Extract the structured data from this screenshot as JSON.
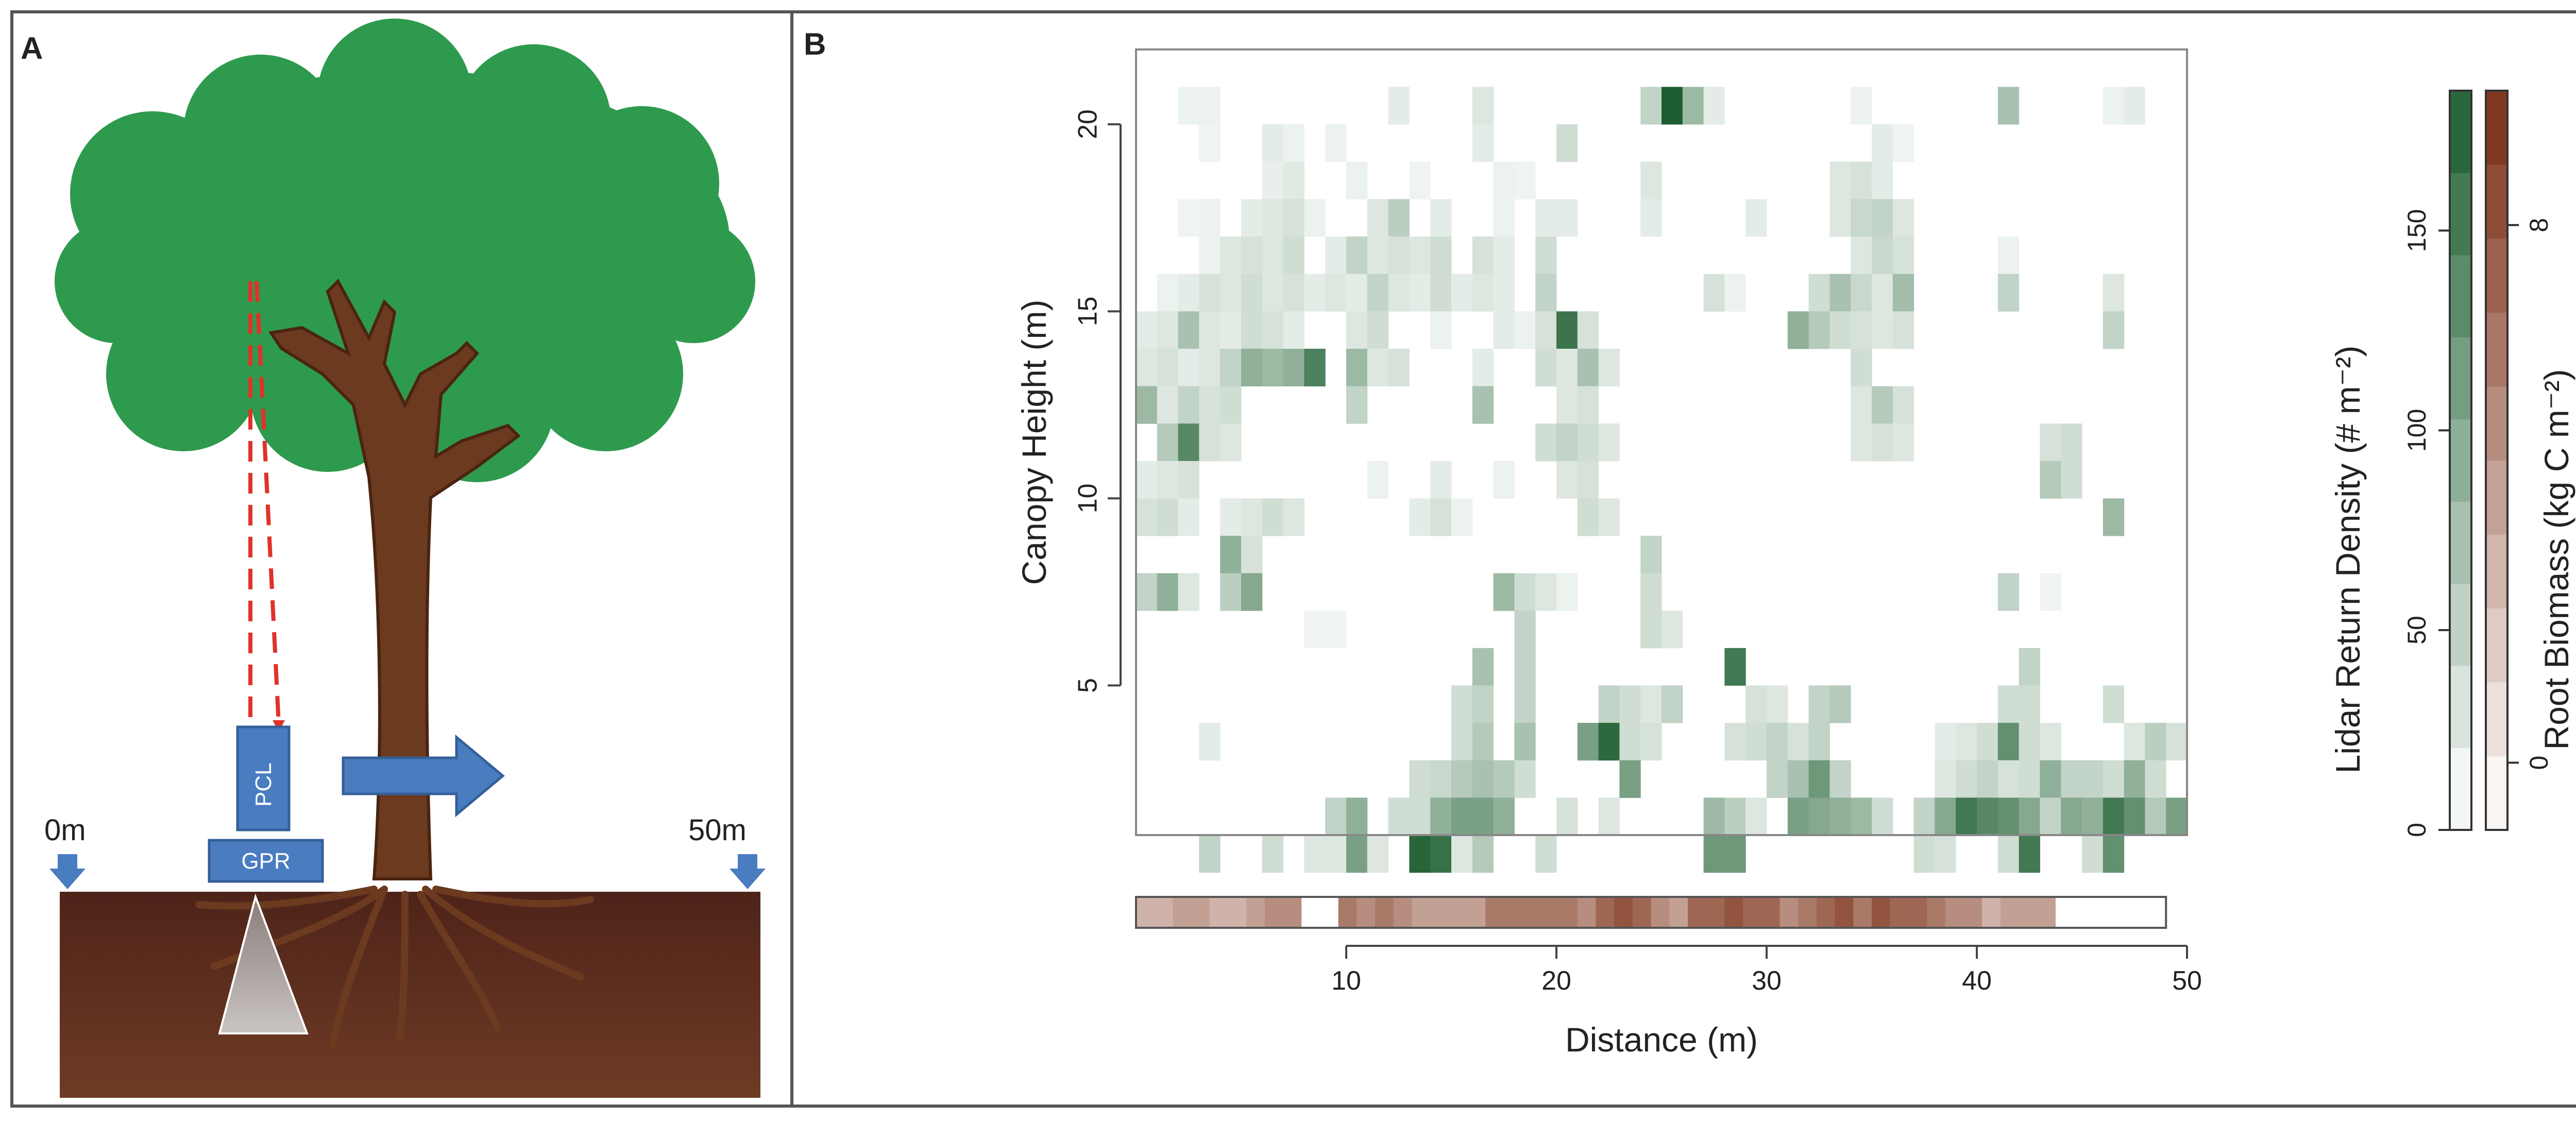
{
  "panel_a": {
    "label": "A",
    "pcl_label": "PCL",
    "gpr_label": "GPR",
    "start_label": "0m",
    "end_label": "50m",
    "colors": {
      "canopy": "#2e9a4e",
      "trunk": "#6b3a1f",
      "soil_top": "#5a2a1c",
      "soil_bottom": "#6d3a24",
      "instrument": "#4a7cc0",
      "laser": "#e0322a"
    }
  },
  "chart_data": {
    "type": "heatmap",
    "panel_label": "B",
    "xlabel": "Distance (m)",
    "ylabel": "Canopy Height (m)",
    "xlim": [
      0,
      50
    ],
    "ylim": [
      1,
      22
    ],
    "x_ticks": [
      "10",
      "20",
      "30",
      "40",
      "50"
    ],
    "x_tick_values": [
      10,
      20,
      30,
      40,
      50
    ],
    "y_ticks": [
      "5",
      "10",
      "15",
      "20"
    ],
    "y_tick_values": [
      5,
      10,
      15,
      20
    ],
    "cell_width_m": 1,
    "cell_height_m": 1,
    "lidar_scale_max": 185,
    "lidar_cells": [
      [
        3,
        21,
        10
      ],
      [
        4,
        21,
        10
      ],
      [
        13,
        21,
        15
      ],
      [
        17,
        21,
        20
      ],
      [
        25,
        21,
        40
      ],
      [
        26,
        21,
        185
      ],
      [
        27,
        21,
        70
      ],
      [
        28,
        21,
        15
      ],
      [
        35,
        21,
        10
      ],
      [
        42,
        21,
        60
      ],
      [
        47,
        21,
        10
      ],
      [
        48,
        21,
        15
      ],
      [
        4,
        20,
        8
      ],
      [
        7,
        20,
        15
      ],
      [
        8,
        20,
        10
      ],
      [
        10,
        20,
        10
      ],
      [
        17,
        20,
        15
      ],
      [
        21,
        20,
        30
      ],
      [
        36,
        20,
        15
      ],
      [
        37,
        20,
        8
      ],
      [
        7,
        19,
        12
      ],
      [
        8,
        19,
        18
      ],
      [
        11,
        19,
        10
      ],
      [
        14,
        19,
        8
      ],
      [
        18,
        19,
        10
      ],
      [
        19,
        19,
        8
      ],
      [
        25,
        19,
        20
      ],
      [
        34,
        19,
        20
      ],
      [
        35,
        19,
        25
      ],
      [
        36,
        19,
        15
      ],
      [
        3,
        18,
        8
      ],
      [
        4,
        18,
        10
      ],
      [
        6,
        18,
        15
      ],
      [
        7,
        18,
        20
      ],
      [
        8,
        18,
        25
      ],
      [
        9,
        18,
        10
      ],
      [
        12,
        18,
        20
      ],
      [
        13,
        18,
        45
      ],
      [
        15,
        18,
        15
      ],
      [
        18,
        18,
        10
      ],
      [
        20,
        18,
        15
      ],
      [
        21,
        18,
        15
      ],
      [
        25,
        18,
        15
      ],
      [
        30,
        18,
        15
      ],
      [
        34,
        18,
        20
      ],
      [
        35,
        18,
        35
      ],
      [
        36,
        18,
        40
      ],
      [
        37,
        18,
        20
      ],
      [
        4,
        17,
        10
      ],
      [
        5,
        17,
        20
      ],
      [
        6,
        17,
        25
      ],
      [
        7,
        17,
        20
      ],
      [
        8,
        17,
        30
      ],
      [
        10,
        17,
        15
      ],
      [
        11,
        17,
        40
      ],
      [
        12,
        17,
        20
      ],
      [
        13,
        17,
        25
      ],
      [
        14,
        17,
        20
      ],
      [
        15,
        17,
        30
      ],
      [
        17,
        17,
        25
      ],
      [
        18,
        17,
        15
      ],
      [
        20,
        17,
        30
      ],
      [
        35,
        17,
        20
      ],
      [
        36,
        17,
        35
      ],
      [
        37,
        17,
        25
      ],
      [
        42,
        17,
        10
      ],
      [
        2,
        16,
        10
      ],
      [
        3,
        16,
        15
      ],
      [
        4,
        16,
        25
      ],
      [
        5,
        16,
        20
      ],
      [
        6,
        16,
        30
      ],
      [
        7,
        16,
        20
      ],
      [
        8,
        16,
        25
      ],
      [
        9,
        16,
        15
      ],
      [
        10,
        16,
        20
      ],
      [
        11,
        16,
        15
      ],
      [
        12,
        16,
        40
      ],
      [
        13,
        16,
        20
      ],
      [
        14,
        16,
        15
      ],
      [
        15,
        16,
        30
      ],
      [
        16,
        16,
        15
      ],
      [
        17,
        16,
        20
      ],
      [
        18,
        16,
        15
      ],
      [
        20,
        16,
        40
      ],
      [
        28,
        16,
        25
      ],
      [
        29,
        16,
        10
      ],
      [
        33,
        16,
        30
      ],
      [
        34,
        16,
        60
      ],
      [
        35,
        16,
        35
      ],
      [
        36,
        16,
        20
      ],
      [
        37,
        16,
        65
      ],
      [
        42,
        16,
        40
      ],
      [
        47,
        16,
        20
      ],
      [
        1,
        15,
        15
      ],
      [
        2,
        15,
        20
      ],
      [
        3,
        15,
        60
      ],
      [
        4,
        15,
        20
      ],
      [
        5,
        15,
        15
      ],
      [
        6,
        15,
        30
      ],
      [
        7,
        15,
        25
      ],
      [
        8,
        15,
        15
      ],
      [
        11,
        15,
        20
      ],
      [
        12,
        15,
        30
      ],
      [
        15,
        15,
        10
      ],
      [
        18,
        15,
        15
      ],
      [
        19,
        15,
        10
      ],
      [
        20,
        15,
        25
      ],
      [
        21,
        15,
        155
      ],
      [
        22,
        15,
        25
      ],
      [
        32,
        15,
        80
      ],
      [
        33,
        15,
        50
      ],
      [
        34,
        15,
        30
      ],
      [
        35,
        15,
        25
      ],
      [
        36,
        15,
        20
      ],
      [
        37,
        15,
        25
      ],
      [
        47,
        15,
        40
      ],
      [
        1,
        14,
        20
      ],
      [
        2,
        14,
        25
      ],
      [
        3,
        14,
        15
      ],
      [
        4,
        14,
        20
      ],
      [
        5,
        14,
        40
      ],
      [
        6,
        14,
        80
      ],
      [
        7,
        14,
        70
      ],
      [
        8,
        14,
        80
      ],
      [
        9,
        14,
        140
      ],
      [
        11,
        14,
        70
      ],
      [
        12,
        14,
        20
      ],
      [
        13,
        14,
        25
      ],
      [
        17,
        14,
        15
      ],
      [
        20,
        14,
        30
      ],
      [
        21,
        14,
        20
      ],
      [
        22,
        14,
        60
      ],
      [
        23,
        14,
        20
      ],
      [
        35,
        14,
        30
      ],
      [
        1,
        13,
        70
      ],
      [
        2,
        13,
        20
      ],
      [
        3,
        13,
        40
      ],
      [
        4,
        13,
        25
      ],
      [
        5,
        13,
        30
      ],
      [
        11,
        13,
        40
      ],
      [
        17,
        13,
        60
      ],
      [
        21,
        13,
        20
      ],
      [
        22,
        13,
        25
      ],
      [
        35,
        13,
        20
      ],
      [
        36,
        13,
        50
      ],
      [
        37,
        13,
        25
      ],
      [
        2,
        12,
        50
      ],
      [
        3,
        12,
        130
      ],
      [
        4,
        12,
        25
      ],
      [
        5,
        12,
        20
      ],
      [
        20,
        12,
        30
      ],
      [
        21,
        12,
        40
      ],
      [
        22,
        12,
        30
      ],
      [
        23,
        12,
        20
      ],
      [
        35,
        12,
        20
      ],
      [
        36,
        12,
        25
      ],
      [
        37,
        12,
        20
      ],
      [
        44,
        12,
        25
      ],
      [
        45,
        12,
        30
      ],
      [
        1,
        11,
        15
      ],
      [
        2,
        11,
        20
      ],
      [
        3,
        11,
        25
      ],
      [
        12,
        11,
        10
      ],
      [
        15,
        11,
        15
      ],
      [
        18,
        11,
        10
      ],
      [
        21,
        11,
        20
      ],
      [
        22,
        11,
        25
      ],
      [
        44,
        11,
        50
      ],
      [
        45,
        11,
        30
      ],
      [
        1,
        10,
        25
      ],
      [
        2,
        10,
        30
      ],
      [
        3,
        10,
        15
      ],
      [
        5,
        10,
        15
      ],
      [
        6,
        10,
        20
      ],
      [
        7,
        10,
        30
      ],
      [
        8,
        10,
        20
      ],
      [
        14,
        10,
        15
      ],
      [
        15,
        10,
        25
      ],
      [
        16,
        10,
        10
      ],
      [
        22,
        10,
        30
      ],
      [
        23,
        10,
        20
      ],
      [
        47,
        10,
        70
      ],
      [
        5,
        9,
        80
      ],
      [
        6,
        9,
        25
      ],
      [
        25,
        9,
        40
      ],
      [
        1,
        8,
        40
      ],
      [
        2,
        8,
        80
      ],
      [
        3,
        8,
        20
      ],
      [
        5,
        8,
        45
      ],
      [
        6,
        8,
        90
      ],
      [
        18,
        8,
        70
      ],
      [
        19,
        8,
        30
      ],
      [
        20,
        8,
        20
      ],
      [
        21,
        8,
        10
      ],
      [
        25,
        8,
        30
      ],
      [
        42,
        8,
        40
      ],
      [
        44,
        8,
        8
      ],
      [
        9,
        7,
        8
      ],
      [
        10,
        7,
        8
      ],
      [
        19,
        7,
        40
      ],
      [
        25,
        7,
        30
      ],
      [
        26,
        7,
        20
      ],
      [
        17,
        6,
        60
      ],
      [
        19,
        6,
        40
      ],
      [
        29,
        6,
        150
      ],
      [
        43,
        6,
        40
      ],
      [
        16,
        5,
        30
      ],
      [
        17,
        5,
        40
      ],
      [
        19,
        5,
        40
      ],
      [
        23,
        5,
        40
      ],
      [
        24,
        5,
        30
      ],
      [
        25,
        5,
        20
      ],
      [
        26,
        5,
        40
      ],
      [
        30,
        5,
        25
      ],
      [
        31,
        5,
        20
      ],
      [
        33,
        5,
        40
      ],
      [
        34,
        5,
        50
      ],
      [
        42,
        5,
        30
      ],
      [
        43,
        5,
        30
      ],
      [
        47,
        5,
        30
      ],
      [
        4,
        4,
        15
      ],
      [
        16,
        4,
        30
      ],
      [
        17,
        4,
        50
      ],
      [
        19,
        4,
        60
      ],
      [
        22,
        4,
        100
      ],
      [
        23,
        4,
        170
      ],
      [
        24,
        4,
        30
      ],
      [
        25,
        4,
        25
      ],
      [
        29,
        4,
        25
      ],
      [
        30,
        4,
        30
      ],
      [
        31,
        4,
        40
      ],
      [
        32,
        4,
        25
      ],
      [
        33,
        4,
        40
      ],
      [
        39,
        4,
        15
      ],
      [
        40,
        4,
        20
      ],
      [
        41,
        4,
        30
      ],
      [
        42,
        4,
        120
      ],
      [
        43,
        4,
        30
      ],
      [
        44,
        4,
        20
      ],
      [
        48,
        4,
        20
      ],
      [
        49,
        4,
        45
      ],
      [
        50,
        4,
        25
      ],
      [
        14,
        3,
        30
      ],
      [
        15,
        3,
        35
      ],
      [
        16,
        3,
        50
      ],
      [
        17,
        3,
        60
      ],
      [
        18,
        3,
        50
      ],
      [
        19,
        3,
        30
      ],
      [
        24,
        3,
        100
      ],
      [
        31,
        3,
        40
      ],
      [
        32,
        3,
        60
      ],
      [
        33,
        3,
        110
      ],
      [
        34,
        3,
        40
      ],
      [
        39,
        3,
        20
      ],
      [
        40,
        3,
        30
      ],
      [
        41,
        3,
        40
      ],
      [
        42,
        3,
        25
      ],
      [
        43,
        3,
        30
      ],
      [
        44,
        3,
        80
      ],
      [
        45,
        3,
        40
      ],
      [
        46,
        3,
        40
      ],
      [
        47,
        3,
        30
      ],
      [
        48,
        3,
        80
      ],
      [
        49,
        3,
        30
      ],
      [
        10,
        2,
        40
      ],
      [
        11,
        2,
        80
      ],
      [
        13,
        2,
        30
      ],
      [
        14,
        2,
        30
      ],
      [
        15,
        2,
        80
      ],
      [
        16,
        2,
        100
      ],
      [
        17,
        2,
        100
      ],
      [
        18,
        2,
        80
      ],
      [
        21,
        2,
        25
      ],
      [
        23,
        2,
        20
      ],
      [
        28,
        2,
        70
      ],
      [
        29,
        2,
        45
      ],
      [
        30,
        2,
        20
      ],
      [
        32,
        2,
        100
      ],
      [
        33,
        2,
        90
      ],
      [
        34,
        2,
        80
      ],
      [
        35,
        2,
        70
      ],
      [
        36,
        2,
        30
      ],
      [
        38,
        2,
        40
      ],
      [
        39,
        2,
        90
      ],
      [
        40,
        2,
        150
      ],
      [
        41,
        2,
        130
      ],
      [
        42,
        2,
        120
      ],
      [
        43,
        2,
        90
      ],
      [
        44,
        2,
        40
      ],
      [
        45,
        2,
        90
      ],
      [
        46,
        2,
        80
      ],
      [
        47,
        2,
        150
      ],
      [
        48,
        2,
        120
      ],
      [
        49,
        2,
        50
      ],
      [
        50,
        2,
        100
      ],
      [
        4,
        1,
        40
      ],
      [
        7,
        1,
        30
      ],
      [
        9,
        1,
        20
      ],
      [
        10,
        1,
        20
      ],
      [
        11,
        1,
        100
      ],
      [
        12,
        1,
        20
      ],
      [
        14,
        1,
        175
      ],
      [
        15,
        1,
        160
      ],
      [
        16,
        1,
        20
      ],
      [
        17,
        1,
        50
      ],
      [
        20,
        1,
        30
      ],
      [
        28,
        1,
        110
      ],
      [
        29,
        1,
        110
      ],
      [
        38,
        1,
        30
      ],
      [
        39,
        1,
        25
      ],
      [
        42,
        1,
        30
      ],
      [
        43,
        1,
        150
      ],
      [
        46,
        1,
        30
      ],
      [
        47,
        1,
        120
      ]
    ],
    "root_biomass_values": [
      3,
      3,
      4,
      4,
      3,
      3,
      4,
      5,
      5,
      null,
      null,
      6,
      5,
      6,
      5,
      4,
      4,
      4,
      4,
      6,
      6,
      6,
      6,
      6,
      5,
      7,
      8,
      7,
      5,
      4,
      7,
      7,
      8,
      7,
      7,
      5,
      6,
      7,
      8,
      6,
      8,
      7,
      7,
      6,
      5,
      5,
      3,
      4,
      4,
      4,
      null,
      null,
      null,
      null,
      null,
      null
    ],
    "lidar_colorbar": {
      "title": "Lidar Return Density (# m⁻²)",
      "ticks": [
        "0",
        "50",
        "100",
        "150"
      ],
      "tick_values": [
        0,
        50,
        100,
        150
      ],
      "range": [
        0,
        185
      ]
    },
    "root_colorbar": {
      "title": "Root Biomass (kg C m⁻²)",
      "ticks": [
        "0",
        "8"
      ],
      "tick_values": [
        0,
        8
      ],
      "range": [
        -1,
        10
      ]
    },
    "colors": {
      "lidar_high": "#1d5e30",
      "lidar_low": "#ffffff",
      "root_high": "#7a2e14",
      "root_low": "#ffffff"
    }
  }
}
